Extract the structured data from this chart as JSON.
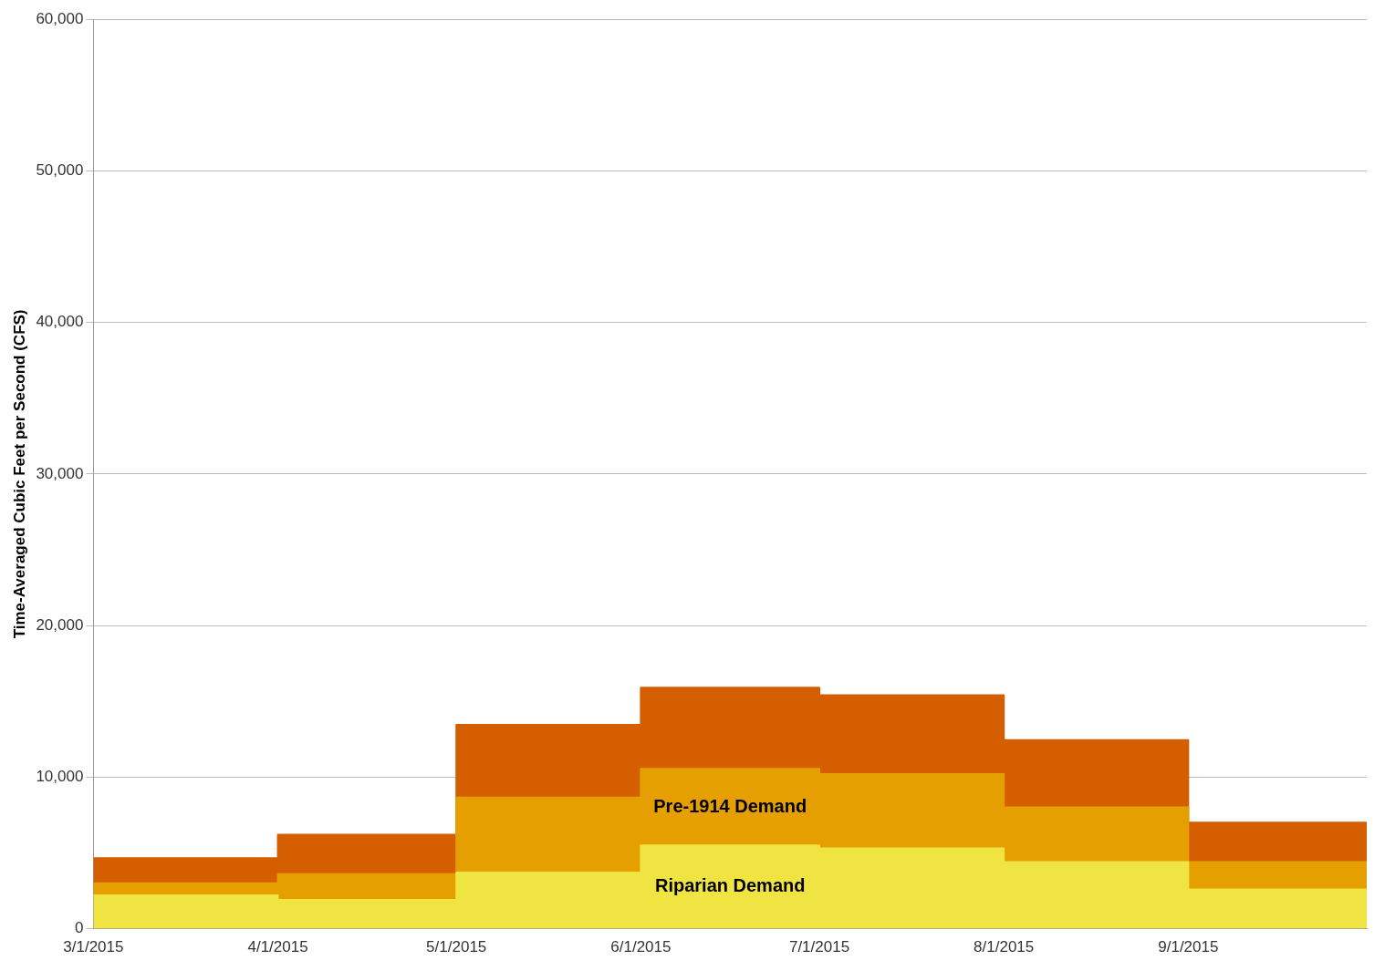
{
  "chart_data": {
    "type": "area",
    "stacked": true,
    "ylabel": "Time-Averaged Cubic Feet per Second (CFS)",
    "x": [
      "2015-03-01",
      "2015-04-01",
      "2015-04-01",
      "2015-05-01",
      "2015-05-01",
      "2015-06-01",
      "2015-06-01",
      "2015-07-01",
      "2015-07-01",
      "2015-08-01",
      "2015-08-01",
      "2015-09-01",
      "2015-09-01",
      "2015-10-01"
    ],
    "xlim": [
      "2015-03-01",
      "2015-10-01"
    ],
    "xticks": [
      {
        "value": "2015-03-01",
        "label": "3/1/2015"
      },
      {
        "value": "2015-04-01",
        "label": "4/1/2015"
      },
      {
        "value": "2015-05-01",
        "label": "5/1/2015"
      },
      {
        "value": "2015-06-01",
        "label": "6/1/2015"
      },
      {
        "value": "2015-07-01",
        "label": "7/1/2015"
      },
      {
        "value": "2015-08-01",
        "label": "8/1/2015"
      },
      {
        "value": "2015-09-01",
        "label": "9/1/2015"
      }
    ],
    "ylim": [
      0,
      60000
    ],
    "yticks": [
      {
        "value": 0,
        "label": "0"
      },
      {
        "value": 10000,
        "label": "10,000"
      },
      {
        "value": 20000,
        "label": "20,000"
      },
      {
        "value": 30000,
        "label": "30,000"
      },
      {
        "value": 40000,
        "label": "40,000"
      },
      {
        "value": 50000,
        "label": "50,000"
      },
      {
        "value": 60000,
        "label": "60,000"
      }
    ],
    "grid": "y",
    "legend": false,
    "series": [
      {
        "name": "Riparian Demand",
        "color": "#f0e442",
        "values": [
          2200,
          2200,
          1900,
          1900,
          3700,
          3700,
          5500,
          5500,
          5300,
          5300,
          4400,
          4400,
          2600,
          2600
        ]
      },
      {
        "name": "Pre-1914 Demand",
        "color": "#e69f00",
        "values": [
          800,
          800,
          1700,
          1700,
          4950,
          4950,
          5050,
          5050,
          4900,
          4900,
          3600,
          3600,
          1800,
          1800
        ]
      },
      {
        "color": "#d55e00",
        "values": [
          1650,
          1650,
          2600,
          2600,
          4800,
          4800,
          5350,
          5350,
          5200,
          5200,
          4450,
          4450,
          2600,
          2600
        ]
      }
    ]
  }
}
